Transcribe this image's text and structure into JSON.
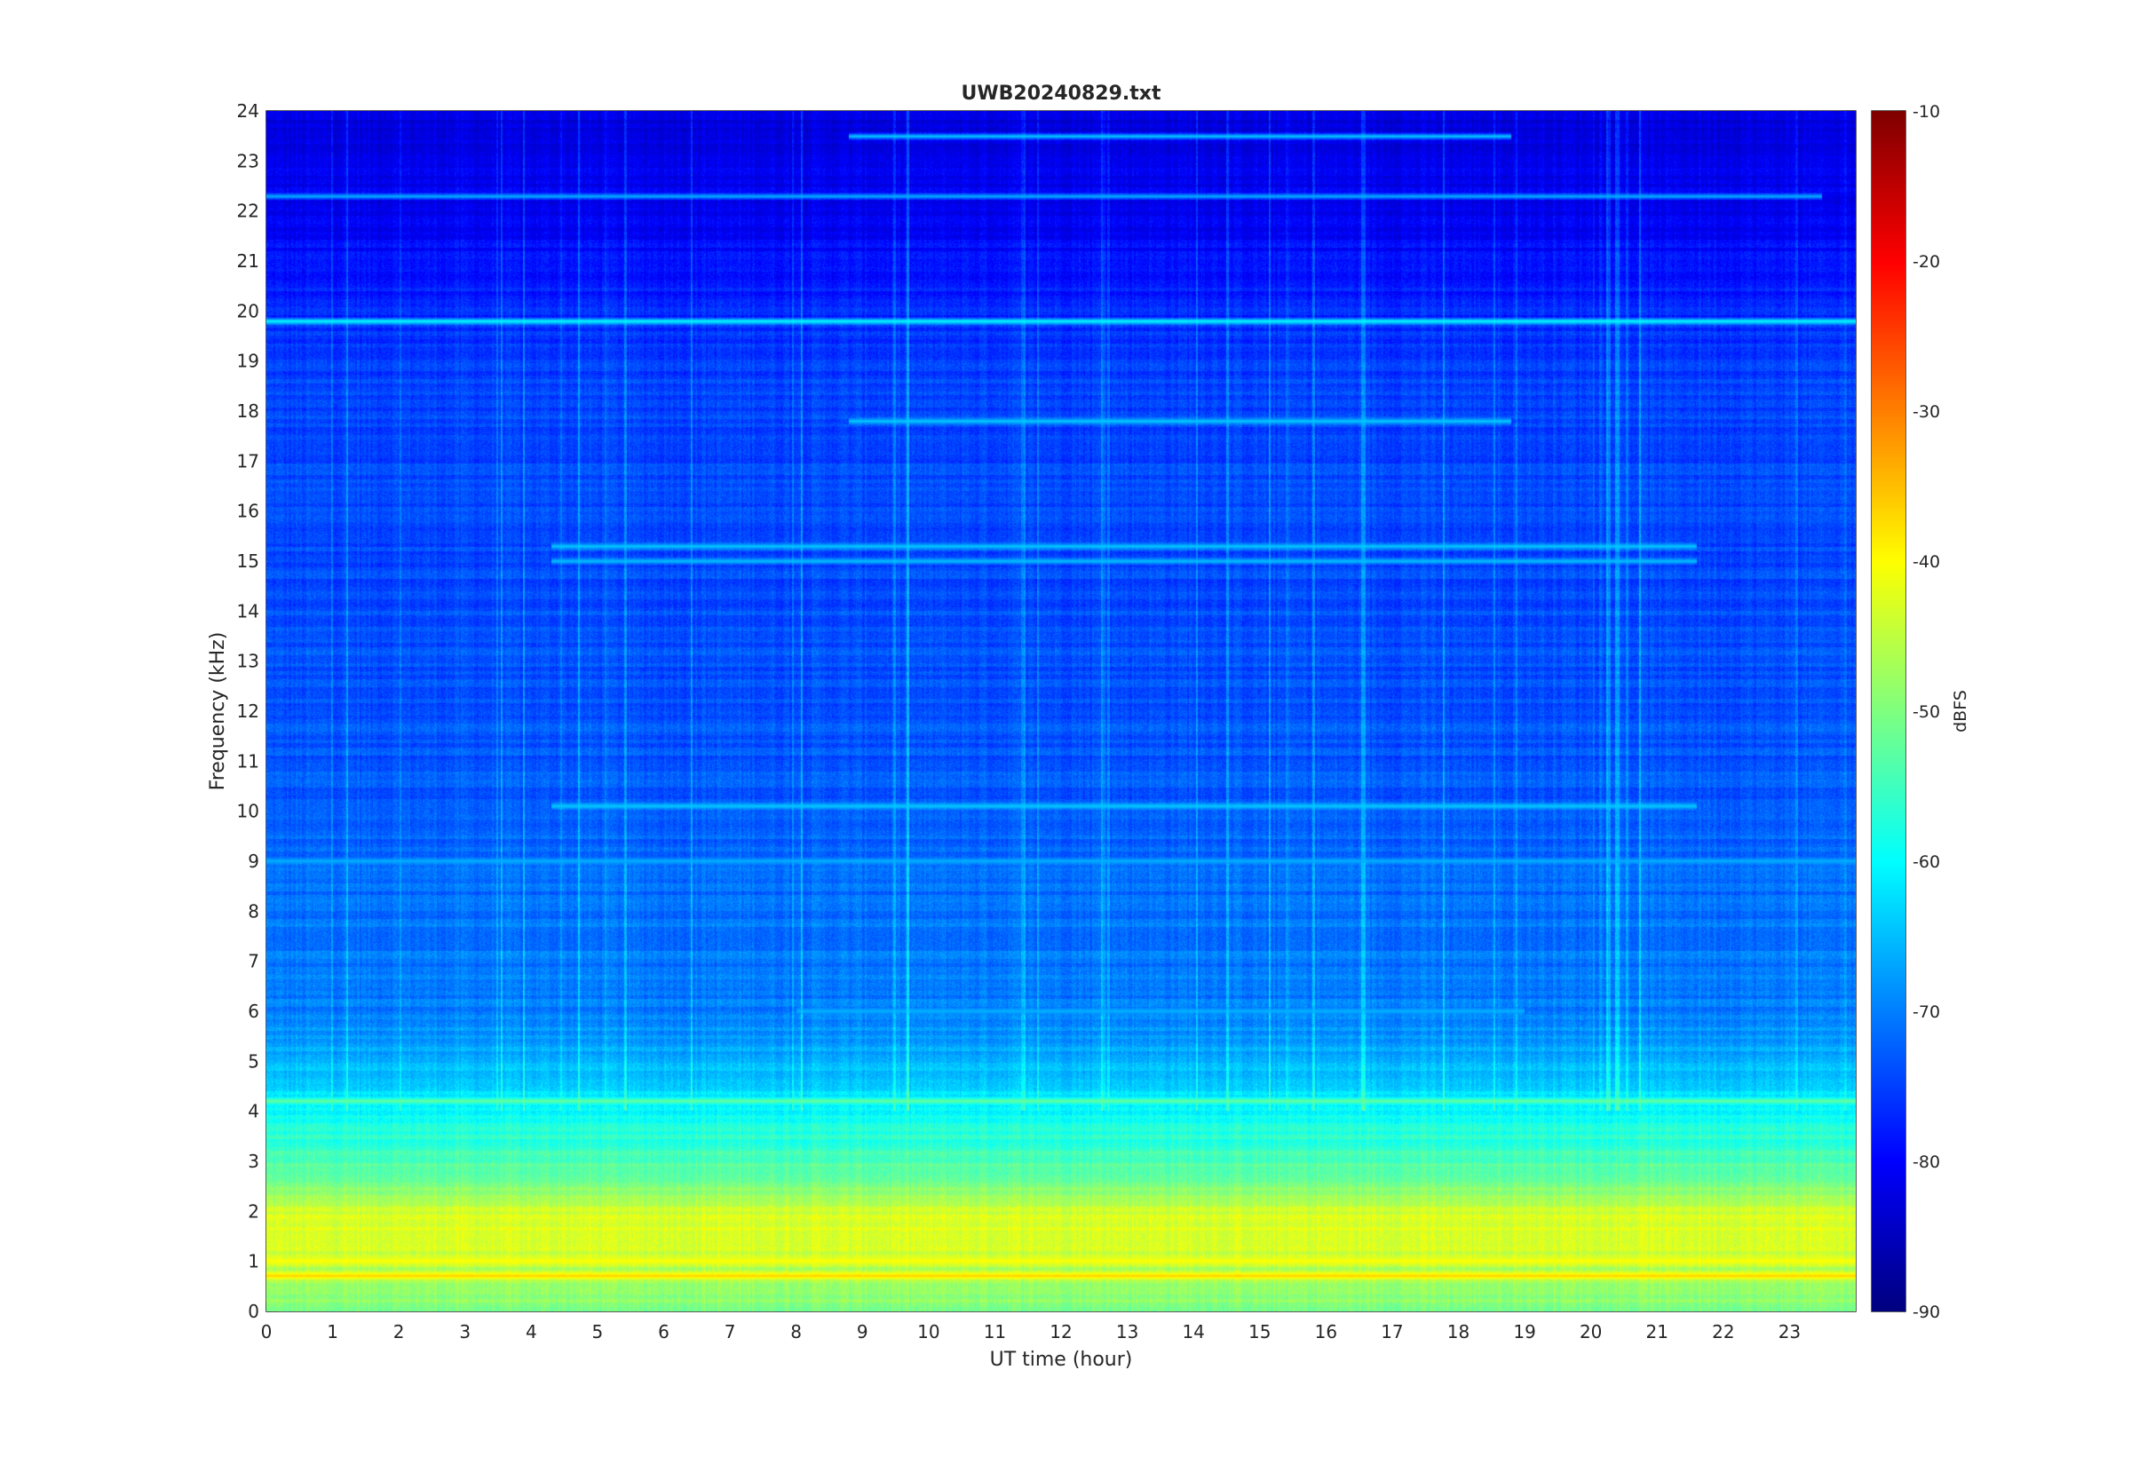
{
  "chart_data": {
    "type": "heatmap",
    "title": "UWB20240829.txt",
    "xlabel": "UT time (hour)",
    "ylabel": "Frequency (kHz)",
    "xlim": [
      0,
      24
    ],
    "ylim": [
      0,
      24
    ],
    "xticks": [
      "0",
      "1",
      "2",
      "3",
      "4",
      "5",
      "6",
      "7",
      "8",
      "9",
      "10",
      "11",
      "12",
      "13",
      "14",
      "15",
      "16",
      "17",
      "18",
      "19",
      "20",
      "21",
      "22",
      "23"
    ],
    "yticks": [
      "0",
      "1",
      "2",
      "3",
      "4",
      "5",
      "6",
      "7",
      "8",
      "9",
      "10",
      "11",
      "12",
      "13",
      "14",
      "15",
      "16",
      "17",
      "18",
      "19",
      "20",
      "21",
      "22",
      "23",
      "24"
    ],
    "colorbar": {
      "label": "dBFS",
      "clim": [
        -90,
        -10
      ],
      "ticks": [
        "-90",
        "-80",
        "-70",
        "-60",
        "-50",
        "-40",
        "-30",
        "-20",
        "-10"
      ],
      "colormap": "jet"
    },
    "grid": false,
    "background_level_db": {
      "freq_khz": [
        0,
        0.5,
        1,
        1.5,
        2,
        2.5,
        3,
        4,
        5,
        6,
        8,
        10,
        14,
        19,
        20.5,
        22,
        24
      ],
      "level": [
        -50,
        -48,
        -44,
        -42,
        -44,
        -50,
        -54,
        -60,
        -66,
        -70,
        -71,
        -73,
        -74,
        -75,
        -78,
        -81,
        -82
      ]
    },
    "persistent_bands": [
      {
        "freq_khz": 19.8,
        "level_db": -60,
        "t_start": 0,
        "t_end": 24
      },
      {
        "freq_khz": 22.3,
        "level_db": -66,
        "t_start": 0,
        "t_end": 23.5
      },
      {
        "freq_khz": 23.5,
        "level_db": -64,
        "t_start": 8.8,
        "t_end": 18.8
      },
      {
        "freq_khz": 17.8,
        "level_db": -64,
        "t_start": 8.8,
        "t_end": 18.8
      },
      {
        "freq_khz": 15.3,
        "level_db": -64,
        "t_start": 4.3,
        "t_end": 21.6
      },
      {
        "freq_khz": 15.0,
        "level_db": -65,
        "t_start": 4.3,
        "t_end": 21.6
      },
      {
        "freq_khz": 10.1,
        "level_db": -64,
        "t_start": 4.3,
        "t_end": 21.6
      },
      {
        "freq_khz": 9.0,
        "level_db": -66,
        "t_start": 0,
        "t_end": 24
      },
      {
        "freq_khz": 6.0,
        "level_db": -66,
        "t_start": 8.0,
        "t_end": 19.0
      },
      {
        "freq_khz": 4.2,
        "level_db": -52,
        "t_start": 0,
        "t_end": 24
      },
      {
        "freq_khz": 1.0,
        "level_db": -40,
        "t_start": 0,
        "t_end": 24
      },
      {
        "freq_khz": 0.7,
        "level_db": -36,
        "t_start": 0,
        "t_end": 24
      }
    ]
  }
}
